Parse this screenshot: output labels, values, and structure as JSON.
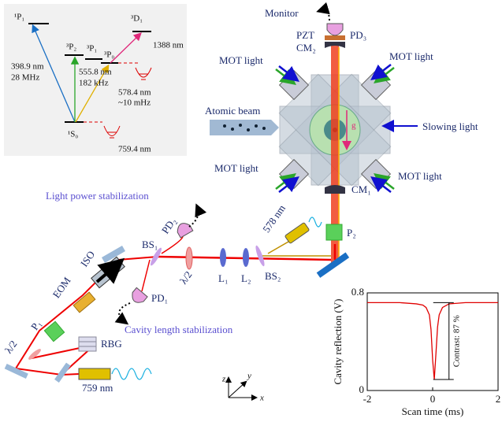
{
  "energy_diagram": {
    "levels": [
      "¹P₁",
      "³P₂",
      "³P₁",
      "³P₀",
      "³D₁",
      "¹S₀"
    ],
    "transitions": [
      "398.9 nm",
      "28 MHz",
      "555.8 nm",
      "182 kHz",
      "578.4 nm",
      "~10 mHz",
      "1388 nm"
    ],
    "trap": "759.4 nm"
  },
  "setup": {
    "monitor": "Monitor",
    "pd3": "PD₃",
    "pzt": "PZT",
    "cm2": "CM₂",
    "cm1": "CM₁",
    "mot_light": [
      "MOT light",
      "MOT light",
      "MOT light",
      "MOT light"
    ],
    "atomic_beam": "Atomic beam",
    "slowing_light": "Slowing light",
    "g": "g",
    "light_power": "Light power stabilization",
    "pd2": "PD₂",
    "laser_578": "578 nm",
    "p2": "P₂",
    "bs1": "BS₁",
    "half_wave_1": "λ/2",
    "l1": "L₁",
    "l2": "L₂",
    "bs2": "BS₂",
    "iso": "ISO",
    "eom": "EOM",
    "pd1": "PD₁",
    "cavity_length": "Cavity length stabilization",
    "p1": "P₁",
    "half_wave_2": "λ/2",
    "rbg": "RBG",
    "laser_759": "759 nm",
    "axes": [
      "z",
      "y",
      "x"
    ]
  },
  "inset_chart": {
    "type": "line",
    "xlabel": "Scan time (ms)",
    "ylabel": "Cavity reflection (V)",
    "annotation": "Contrast: 87 %",
    "color": "#e00000",
    "x": [
      -2,
      -1.5,
      -1,
      -0.5,
      -0.3,
      -0.2,
      -0.1,
      -0.05,
      0,
      0.05,
      0.1,
      0.15,
      0.2,
      0.3,
      0.5,
      1,
      1.5,
      2
    ],
    "values": [
      0.72,
      0.72,
      0.72,
      0.71,
      0.7,
      0.68,
      0.62,
      0.5,
      0.25,
      0.09,
      0.3,
      0.52,
      0.62,
      0.68,
      0.71,
      0.72,
      0.72,
      0.72
    ],
    "xlim": [
      -2,
      2
    ],
    "ylim": [
      0,
      0.8
    ],
    "xticks": [
      -2,
      0,
      2
    ],
    "yticks": [
      0,
      0.8
    ]
  }
}
